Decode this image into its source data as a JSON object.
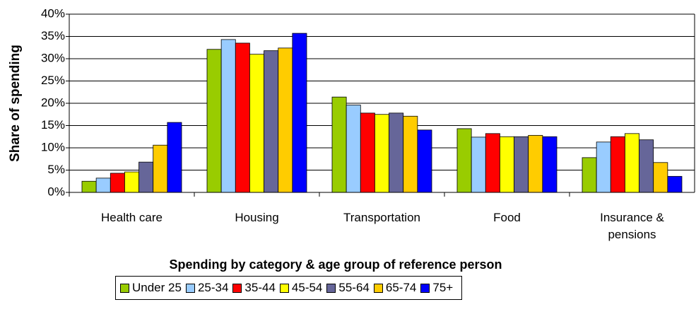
{
  "chart_data": {
    "type": "bar",
    "y_label": "Share of spending",
    "x_label": "Spending by category & age group of reference person",
    "categories": [
      "Health care",
      "Housing",
      "Transportation",
      "Food",
      "Insurance & pensions"
    ],
    "series": [
      {
        "name": "Under 25",
        "color": "#99cc00",
        "values": [
          2.5,
          32.1,
          21.4,
          14.3,
          7.8
        ]
      },
      {
        "name": "25-34",
        "color": "#99ccff",
        "values": [
          3.2,
          34.3,
          19.6,
          12.4,
          11.3
        ]
      },
      {
        "name": "35-44",
        "color": "#ff0000",
        "values": [
          4.3,
          33.5,
          17.8,
          13.2,
          12.5
        ]
      },
      {
        "name": "45-54",
        "color": "#ffff00",
        "values": [
          4.6,
          31.0,
          17.5,
          12.5,
          13.2
        ]
      },
      {
        "name": "55-64",
        "color": "#666699",
        "values": [
          6.8,
          31.8,
          17.8,
          12.5,
          11.8
        ]
      },
      {
        "name": "65-74",
        "color": "#ffcc00",
        "values": [
          10.6,
          32.4,
          17.1,
          12.8,
          6.7
        ]
      },
      {
        "name": "75+",
        "color": "#0000ff",
        "values": [
          15.7,
          35.7,
          14.0,
          12.5,
          3.6
        ]
      }
    ],
    "ylim": [
      0,
      40
    ],
    "yticks": [
      {
        "value": 0,
        "label": "0%"
      },
      {
        "value": 5,
        "label": "5%"
      },
      {
        "value": 10,
        "label": "10%"
      },
      {
        "value": 15,
        "label": "15%"
      },
      {
        "value": 20,
        "label": "20%"
      },
      {
        "value": 25,
        "label": "25%"
      },
      {
        "value": 30,
        "label": "30%"
      },
      {
        "value": 35,
        "label": "35%"
      },
      {
        "value": 40,
        "label": "40%"
      }
    ],
    "grid": true
  }
}
